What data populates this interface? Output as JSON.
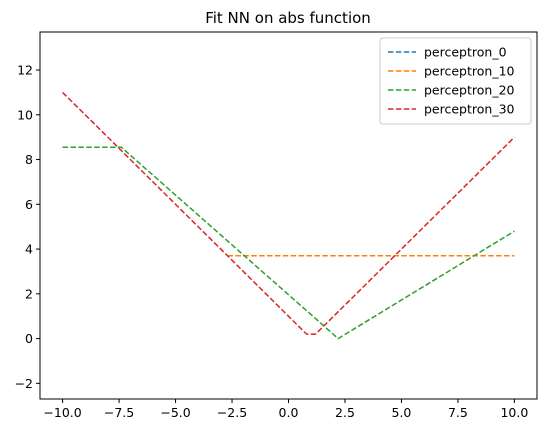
{
  "chart_data": {
    "type": "line",
    "title": "Fit NN on abs function",
    "xlabel": "",
    "ylabel": "",
    "xlim": [
      -11,
      11
    ],
    "ylim": [
      -2.7,
      13.7
    ],
    "xticks": [
      -10.0,
      -7.5,
      -5.0,
      -2.5,
      0.0,
      2.5,
      5.0,
      7.5,
      10.0
    ],
    "xtick_labels": [
      "−10.0",
      "−7.5",
      "−5.0",
      "−2.5",
      "0.0",
      "2.5",
      "5.0",
      "7.5",
      "10.0"
    ],
    "yticks": [
      -2,
      0,
      2,
      4,
      6,
      8,
      10,
      12
    ],
    "ytick_labels": [
      "−2",
      "0",
      "2",
      "4",
      "6",
      "8",
      "10",
      "12"
    ],
    "grid": false,
    "legend_position": "top-right",
    "series": [
      {
        "name": "perceptron_0",
        "color": "#1f77b4",
        "points": []
      },
      {
        "name": "perceptron_10",
        "color": "#ff7f0e",
        "points": [
          [
            -2.7,
            3.7
          ],
          [
            10,
            3.7
          ]
        ]
      },
      {
        "name": "perceptron_20",
        "color": "#2ca02c",
        "points": [
          [
            -10,
            8.55
          ],
          [
            -7.4,
            8.55
          ],
          [
            2.2,
            0
          ],
          [
            10,
            4.8
          ]
        ]
      },
      {
        "name": "perceptron_30",
        "color": "#d62728",
        "points": [
          [
            -10,
            11
          ],
          [
            0.8,
            0.2
          ],
          [
            1.2,
            0.2
          ],
          [
            10,
            9
          ]
        ]
      }
    ]
  }
}
